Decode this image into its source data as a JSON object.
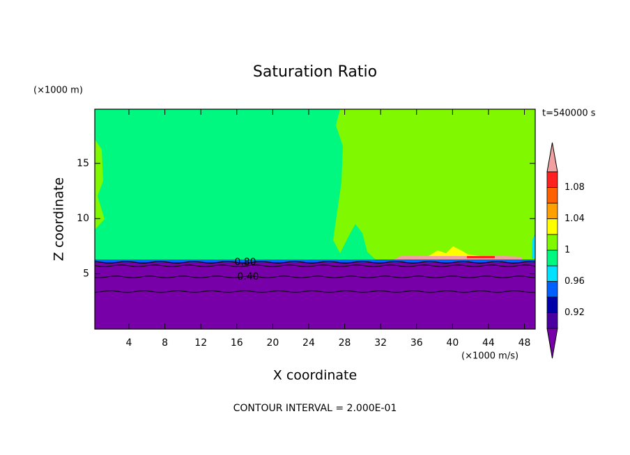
{
  "chart_data": {
    "type": "contour",
    "title": "Saturation Ratio",
    "y_unit": "(×1000 m)",
    "x_unit": "(×1000 m/s)",
    "time_label": "t=540000 s",
    "xlabel": "X coordinate",
    "ylabel": "Z coordinate",
    "footer": "CONTOUR INTERVAL = 2.000E-01",
    "xlim": [
      0.2,
      49.2
    ],
    "xticks": [
      4,
      8,
      12,
      16,
      20,
      24,
      28,
      32,
      36,
      40,
      44,
      48
    ],
    "ylim": [
      0,
      19.9
    ],
    "yticks": [
      5,
      10,
      15
    ],
    "contour_labels": [
      "0.80",
      "0.40"
    ],
    "colorbar": {
      "boundaries": [
        0.9,
        0.92,
        0.94,
        0.96,
        0.98,
        1,
        1.02,
        1.04,
        1.06,
        1.08,
        1.1
      ],
      "ticks": [
        0.92,
        0.96,
        1,
        1.04,
        1.08
      ],
      "colors": [
        "#7800a8",
        "#4a00a0",
        "#0000a8",
        "#0060ff",
        "#00e0ff",
        "#00f880",
        "#80f800",
        "#ffff00",
        "#ffa000",
        "#ff6000",
        "#ff2020",
        "#f0a0a0"
      ]
    }
  }
}
